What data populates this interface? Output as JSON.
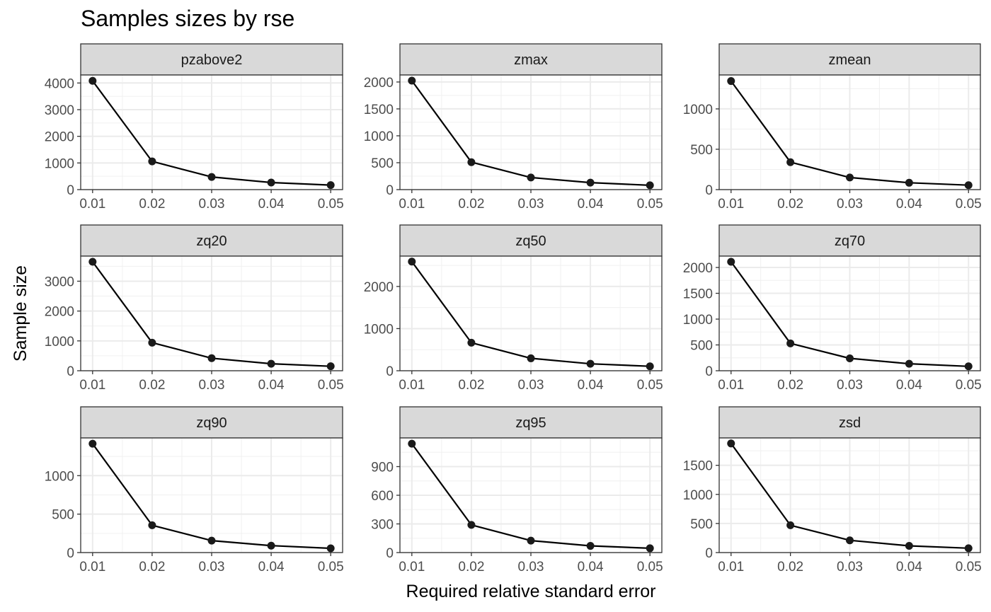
{
  "chart_data": {
    "type": "line",
    "title": "Samples sizes by rse",
    "xlabel": "Required relative standard error",
    "ylabel": "Sample size",
    "grid": true,
    "layout": "facet-grid-3x3",
    "x": [
      0.01,
      0.02,
      0.03,
      0.04,
      0.05
    ],
    "x_ticks": [
      "0.01",
      "0.02",
      "0.03",
      "0.04",
      "0.05"
    ],
    "panels": [
      {
        "name": "pzabove2",
        "values": [
          4080,
          1060,
          475,
          265,
          170
        ],
        "ylim": [
          0,
          4300
        ],
        "y_ticks": [
          0,
          1000,
          2000,
          3000,
          4000
        ]
      },
      {
        "name": "zmax",
        "values": [
          2025,
          510,
          225,
          130,
          80
        ],
        "ylim": [
          0,
          2130
        ],
        "y_ticks": [
          0,
          500,
          1000,
          1500,
          2000
        ]
      },
      {
        "name": "zmean",
        "values": [
          1345,
          340,
          150,
          85,
          55
        ],
        "ylim": [
          0,
          1420
        ],
        "y_ticks": [
          0,
          500,
          1000
        ]
      },
      {
        "name": "zq20",
        "values": [
          3650,
          940,
          420,
          235,
          150
        ],
        "ylim": [
          0,
          3840
        ],
        "y_ticks": [
          0,
          1000,
          2000,
          3000
        ]
      },
      {
        "name": "zq50",
        "values": [
          2590,
          665,
          295,
          165,
          105
        ],
        "ylim": [
          0,
          2720
        ],
        "y_ticks": [
          0,
          1000,
          2000
        ]
      },
      {
        "name": "zq70",
        "values": [
          2110,
          530,
          240,
          135,
          85
        ],
        "ylim": [
          0,
          2220
        ],
        "y_ticks": [
          0,
          500,
          1000,
          1500,
          2000
        ]
      },
      {
        "name": "zq90",
        "values": [
          1415,
          355,
          155,
          90,
          55
        ],
        "ylim": [
          0,
          1490
        ],
        "y_ticks": [
          0,
          500,
          1000
        ]
      },
      {
        "name": "zq95",
        "values": [
          1140,
          290,
          125,
          70,
          45
        ],
        "ylim": [
          0,
          1200
        ],
        "y_ticks": [
          0,
          300,
          600,
          900
        ]
      },
      {
        "name": "zsd",
        "values": [
          1875,
          470,
          210,
          115,
          75
        ],
        "ylim": [
          0,
          1970
        ],
        "y_ticks": [
          0,
          500,
          1000,
          1500
        ]
      }
    ]
  }
}
